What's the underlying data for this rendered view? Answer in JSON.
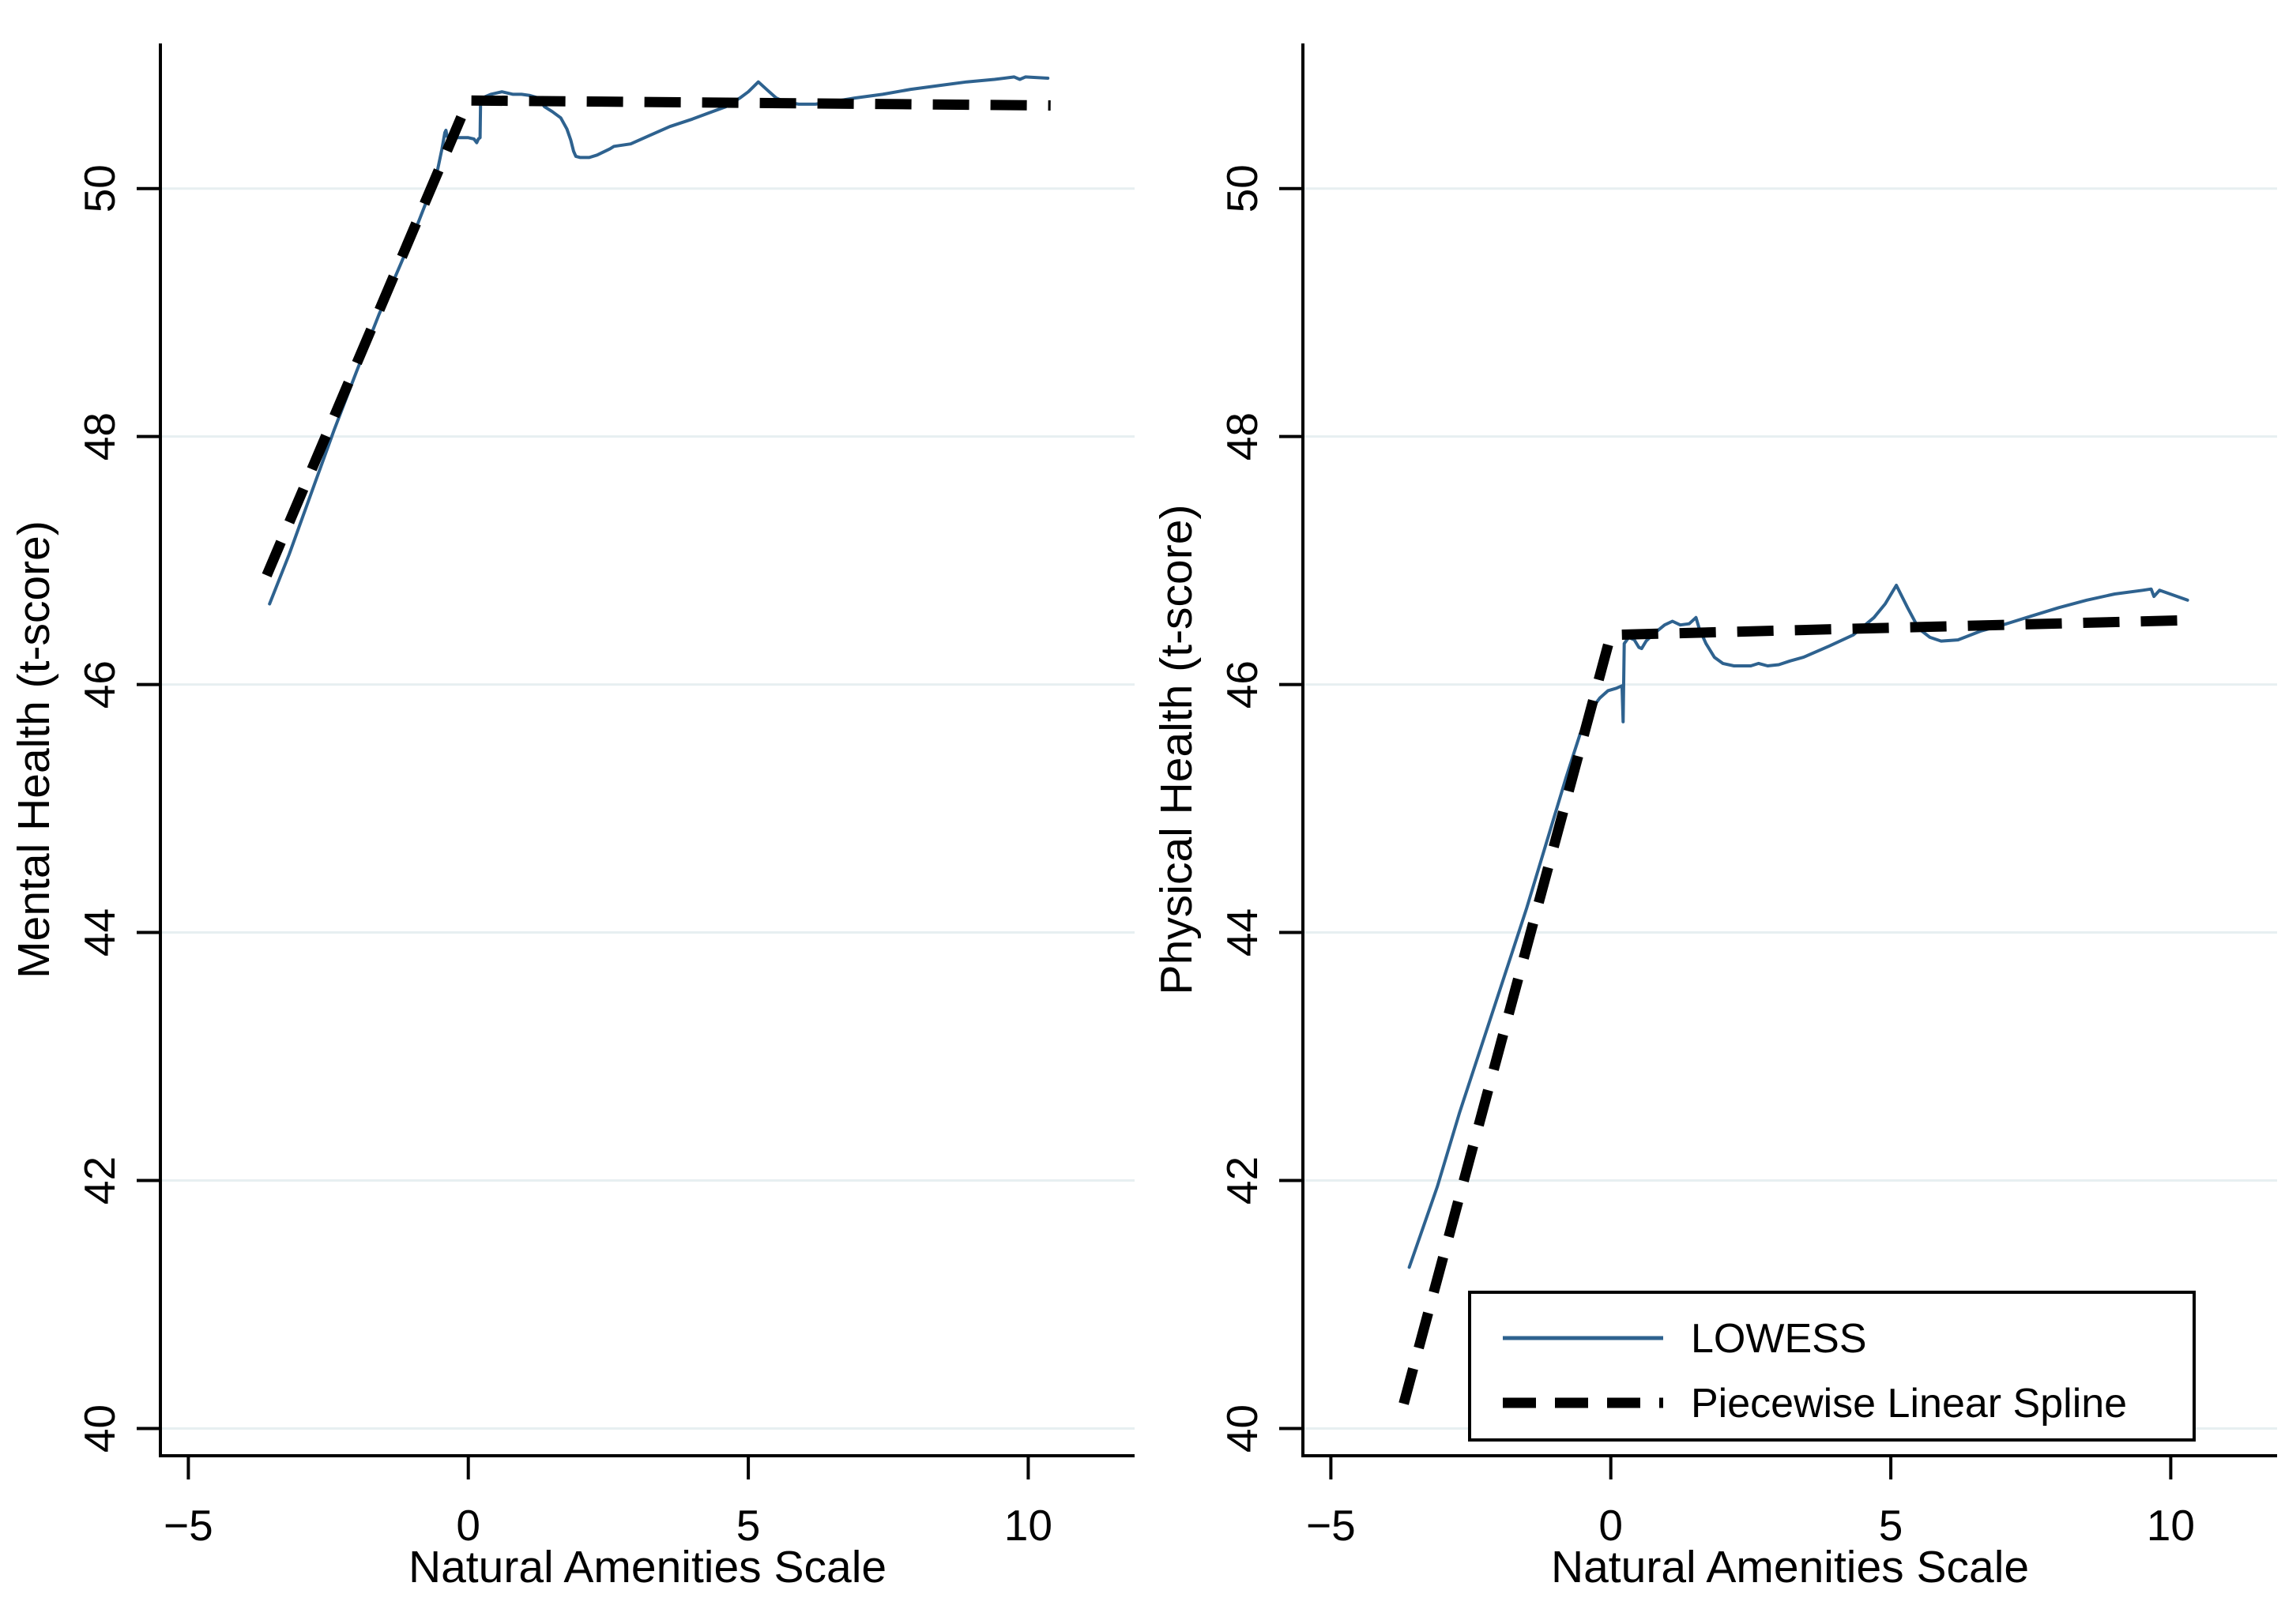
{
  "figure": {
    "background": "#ffffff",
    "description": "Two-panel Stata-style line figure comparing LOWESS fits with piecewise linear splines"
  },
  "colors": {
    "lowess": "#2e628f",
    "spline": "#000000",
    "gridline": "#e7eff1",
    "axis": "#000000",
    "text": "#000000",
    "legend_border": "#000000",
    "legend_fill": "#ffffff"
  },
  "legend": {
    "panel": 1,
    "items": [
      {
        "label": "LOWESS",
        "swatch": "solid-blue-line"
      },
      {
        "label": "Piecewise Linear Spline",
        "swatch": "dashed-black-line"
      }
    ]
  },
  "chart_data": [
    {
      "type": "line",
      "panel_name": "panel-mental-health",
      "title": "",
      "xlabel": "Natural Amenities Scale",
      "ylabel": "Mental Health (t-score)",
      "xlim": [
        -5.5,
        11.9
      ],
      "ylim": [
        39.78,
        51.17
      ],
      "grid": "horizontal",
      "legend_position": "none",
      "xticks": [
        {
          "value": -5,
          "label": "−5"
        },
        {
          "value": 0,
          "label": "0"
        },
        {
          "value": 5,
          "label": "5"
        },
        {
          "value": 10,
          "label": "10"
        }
      ],
      "yticks": [
        {
          "value": 40,
          "label": "40"
        },
        {
          "value": 42,
          "label": "42"
        },
        {
          "value": 44,
          "label": "44"
        },
        {
          "value": 46,
          "label": "46"
        },
        {
          "value": 48,
          "label": "48"
        },
        {
          "value": 50,
          "label": "50"
        }
      ],
      "series": [
        {
          "name": "LOWESS",
          "data_name": "lowess-curve",
          "color": "#2e628f",
          "width": 4,
          "dash": null,
          "points": [
            [
              -3.55,
              46.65
            ],
            [
              -3.2,
              47.05
            ],
            [
              -2.8,
              47.55
            ],
            [
              -2.4,
              48.05
            ],
            [
              -2.0,
              48.52
            ],
            [
              -1.6,
              48.98
            ],
            [
              -1.2,
              49.4
            ],
            [
              -0.9,
              49.72
            ],
            [
              -0.7,
              49.95
            ],
            [
              -0.55,
              50.15
            ],
            [
              -0.47,
              50.32
            ],
            [
              -0.42,
              50.45
            ],
            [
              -0.4,
              50.47
            ],
            [
              -0.38,
              50.42
            ],
            [
              -0.3,
              50.41
            ],
            [
              -0.15,
              50.41
            ],
            [
              0.0,
              50.41
            ],
            [
              0.1,
              50.4
            ],
            [
              0.15,
              50.37
            ],
            [
              0.18,
              50.4
            ],
            [
              0.21,
              50.41
            ],
            [
              0.22,
              50.72
            ],
            [
              0.3,
              50.74
            ],
            [
              0.4,
              50.76
            ],
            [
              0.5,
              50.77
            ],
            [
              0.6,
              50.78
            ],
            [
              0.7,
              50.77
            ],
            [
              0.8,
              50.76
            ],
            [
              0.95,
              50.76
            ],
            [
              1.1,
              50.75
            ],
            [
              1.25,
              50.73
            ],
            [
              1.36,
              50.66
            ],
            [
              1.5,
              50.62
            ],
            [
              1.65,
              50.57
            ],
            [
              1.76,
              50.48
            ],
            [
              1.83,
              50.39
            ],
            [
              1.88,
              50.3
            ],
            [
              1.92,
              50.26
            ],
            [
              2.0,
              50.25
            ],
            [
              2.16,
              50.25
            ],
            [
              2.3,
              50.27
            ],
            [
              2.53,
              50.32
            ],
            [
              2.6,
              50.34
            ],
            [
              2.9,
              50.36
            ],
            [
              3.2,
              50.42
            ],
            [
              3.6,
              50.5
            ],
            [
              4.0,
              50.56
            ],
            [
              4.3,
              50.61
            ],
            [
              4.6,
              50.66
            ],
            [
              4.85,
              50.73
            ],
            [
              5.0,
              50.78
            ],
            [
              5.18,
              50.86
            ],
            [
              5.35,
              50.79
            ],
            [
              5.5,
              50.73
            ],
            [
              5.65,
              50.7
            ],
            [
              5.9,
              50.68
            ],
            [
              6.2,
              50.68
            ],
            [
              6.5,
              50.7
            ],
            [
              6.9,
              50.73
            ],
            [
              7.4,
              50.76
            ],
            [
              7.9,
              50.8
            ],
            [
              8.4,
              50.83
            ],
            [
              8.9,
              50.86
            ],
            [
              9.4,
              50.88
            ],
            [
              9.75,
              50.9
            ],
            [
              9.85,
              50.88
            ],
            [
              9.95,
              50.9
            ],
            [
              10.35,
              50.89
            ]
          ]
        },
        {
          "name": "Piecewise Linear Spline",
          "data_name": "spline-curve",
          "color": "#000000",
          "width": 13,
          "dash": "46 27",
          "points": [
            [
              -3.6,
              46.88
            ],
            [
              0.0,
              50.71
            ],
            [
              10.4,
              50.67
            ]
          ]
        }
      ]
    },
    {
      "type": "line",
      "panel_name": "panel-physical-health",
      "title": "",
      "xlabel": "Natural Amenities Scale",
      "ylabel": "Physical Health (t-score)",
      "xlim": [
        -5.5,
        11.9
      ],
      "ylim": [
        39.78,
        51.17
      ],
      "grid": "horizontal",
      "legend_position": "bottom-right",
      "xticks": [
        {
          "value": -5,
          "label": "−5"
        },
        {
          "value": 0,
          "label": "0"
        },
        {
          "value": 5,
          "label": "5"
        },
        {
          "value": 10,
          "label": "10"
        }
      ],
      "yticks": [
        {
          "value": 40,
          "label": "40"
        },
        {
          "value": 42,
          "label": "42"
        },
        {
          "value": 44,
          "label": "44"
        },
        {
          "value": 46,
          "label": "46"
        },
        {
          "value": 48,
          "label": "48"
        },
        {
          "value": 50,
          "label": "50"
        }
      ],
      "series": [
        {
          "name": "LOWESS",
          "data_name": "lowess-curve",
          "color": "#2e628f",
          "width": 4,
          "dash": null,
          "points": [
            [
              -3.6,
              41.3
            ],
            [
              -3.1,
              41.95
            ],
            [
              -2.7,
              42.55
            ],
            [
              -2.3,
              43.1
            ],
            [
              -1.9,
              43.65
            ],
            [
              -1.5,
              44.2
            ],
            [
              -1.1,
              44.8
            ],
            [
              -0.8,
              45.25
            ],
            [
              -0.55,
              45.6
            ],
            [
              -0.35,
              45.8
            ],
            [
              -0.2,
              45.89
            ],
            [
              -0.05,
              45.95
            ],
            [
              0.1,
              45.97
            ],
            [
              0.2,
              45.99
            ],
            [
              0.22,
              45.7
            ],
            [
              0.24,
              46.33
            ],
            [
              0.32,
              46.38
            ],
            [
              0.42,
              46.36
            ],
            [
              0.5,
              46.3
            ],
            [
              0.55,
              46.29
            ],
            [
              0.63,
              46.35
            ],
            [
              0.77,
              46.41
            ],
            [
              0.96,
              46.48
            ],
            [
              1.1,
              46.51
            ],
            [
              1.24,
              46.48
            ],
            [
              1.4,
              46.49
            ],
            [
              1.52,
              46.54
            ],
            [
              1.58,
              46.45
            ],
            [
              1.7,
              46.33
            ],
            [
              1.85,
              46.22
            ],
            [
              2.0,
              46.17
            ],
            [
              2.2,
              46.15
            ],
            [
              2.5,
              46.15
            ],
            [
              2.64,
              46.17
            ],
            [
              2.8,
              46.15
            ],
            [
              3.0,
              46.16
            ],
            [
              3.2,
              46.19
            ],
            [
              3.44,
              46.22
            ],
            [
              3.9,
              46.31
            ],
            [
              4.33,
              46.4
            ],
            [
              4.7,
              46.54
            ],
            [
              4.9,
              46.65
            ],
            [
              5.1,
              46.8
            ],
            [
              5.3,
              46.62
            ],
            [
              5.5,
              46.45
            ],
            [
              5.7,
              46.38
            ],
            [
              5.9,
              46.35
            ],
            [
              6.2,
              46.36
            ],
            [
              6.6,
              46.43
            ],
            [
              7.0,
              46.48
            ],
            [
              7.5,
              46.55
            ],
            [
              8.0,
              46.62
            ],
            [
              8.5,
              46.68
            ],
            [
              9.0,
              46.73
            ],
            [
              9.5,
              46.76
            ],
            [
              9.65,
              46.77
            ],
            [
              9.7,
              46.71
            ],
            [
              9.8,
              46.76
            ],
            [
              10.3,
              46.68
            ]
          ]
        },
        {
          "name": "Piecewise Linear Spline",
          "data_name": "spline-curve",
          "color": "#000000",
          "width": 13,
          "dash": "46 27",
          "points": [
            [
              -3.7,
              40.2
            ],
            [
              0.0,
              46.4
            ],
            [
              10.4,
              46.52
            ]
          ]
        }
      ]
    }
  ]
}
